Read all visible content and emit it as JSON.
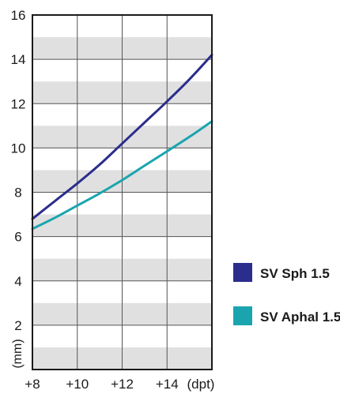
{
  "chart_data": {
    "type": "line",
    "xlabel": "(dpt)",
    "ylabel": "(mm)",
    "xlim": [
      8,
      16
    ],
    "ylim": [
      0,
      16
    ],
    "x_ticks": [
      8,
      10,
      12,
      14
    ],
    "x_tick_labels": [
      "+8",
      "+10",
      "+12",
      "+14"
    ],
    "y_ticks": [
      2,
      4,
      6,
      8,
      10,
      12,
      14,
      16
    ],
    "y_tick_labels": [
      "2",
      "4",
      "6",
      "8",
      "10",
      "12",
      "14",
      "16"
    ],
    "grid": true,
    "banded_background": true,
    "band_color": "#e0e0e0",
    "legend_position": "right",
    "series": [
      {
        "name": "SV Sph 1.5",
        "color": "#2b2d8c",
        "x": [
          8,
          9,
          10,
          11,
          12,
          13,
          14,
          15,
          16
        ],
        "y": [
          6.8,
          7.6,
          8.4,
          9.25,
          10.2,
          11.15,
          12.1,
          13.1,
          14.2
        ]
      },
      {
        "name": "SV Aphal 1.5",
        "color": "#1aa5ae",
        "x": [
          8,
          9,
          10,
          11,
          12,
          13,
          14,
          15,
          16
        ],
        "y": [
          6.35,
          6.85,
          7.4,
          7.95,
          8.55,
          9.2,
          9.85,
          10.5,
          11.2
        ]
      }
    ]
  }
}
